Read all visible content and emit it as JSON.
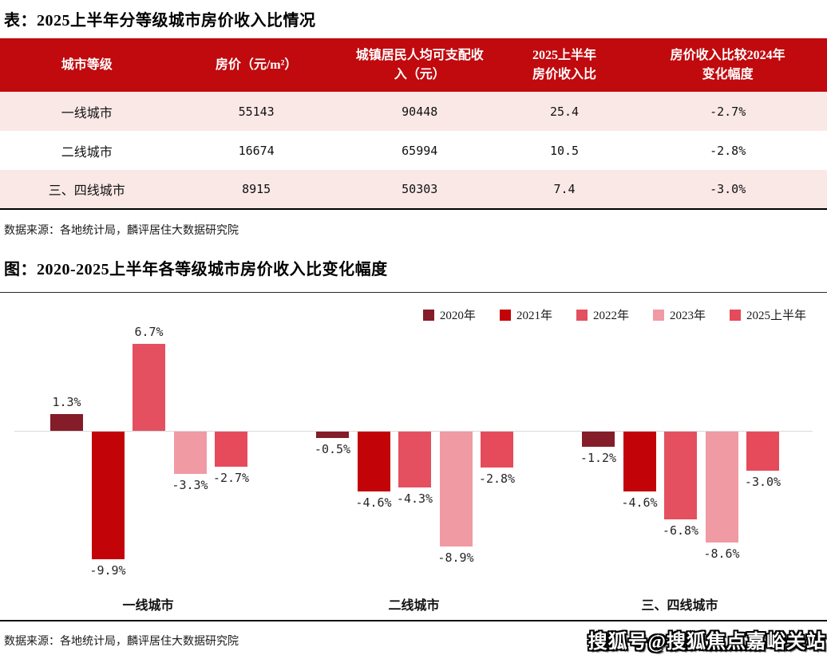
{
  "table_section": {
    "title": "表：2025上半年分等级城市房价收入比情况",
    "columns": [
      "城市等级",
      "房价（元/m²）",
      "城镇居民人均可支配收\n入（元）",
      "2025上半年\n房价收入比",
      "房价收入比较2024年\n变化幅度"
    ],
    "rows": [
      {
        "tier": "一线城市",
        "price": "55143",
        "income": "90448",
        "ratio": "25.4",
        "change": "-2.7%"
      },
      {
        "tier": "二线城市",
        "price": "16674",
        "income": "65994",
        "ratio": "10.5",
        "change": "-2.8%"
      },
      {
        "tier": "三、四线城市",
        "price": "8915",
        "income": "50303",
        "ratio": "7.4",
        "change": "-3.0%"
      }
    ],
    "source": "数据来源：各地统计局，麟评居住大数据研究院"
  },
  "chart_section": {
    "title": "图：2020-2025上半年各等级城市房价收入比变化幅度",
    "source": "数据来源：各地统计局，麟评居住大数据研究院"
  },
  "chart_data": {
    "type": "bar",
    "title": "图：2020-2025上半年各等级城市房价收入比变化幅度",
    "categories": [
      "一线城市",
      "二线城市",
      "三、四线城市"
    ],
    "series": [
      {
        "name": "2020年",
        "color": "#841C29",
        "values": [
          1.3,
          -0.5,
          -1.2
        ],
        "labels": [
          "1.3%",
          "-0.5%",
          "-1.2%"
        ]
      },
      {
        "name": "2021年",
        "color": "#C20408",
        "values": [
          -9.9,
          -4.6,
          -4.6
        ],
        "labels": [
          "-9.9%",
          "-4.6%",
          "-4.6%"
        ]
      },
      {
        "name": "2022年",
        "color": "#E4505F",
        "values": [
          6.7,
          -4.3,
          -6.8
        ],
        "labels": [
          "6.7%",
          "-4.3%",
          "-6.8%"
        ]
      },
      {
        "name": "2023年",
        "color": "#F09AA4",
        "values": [
          -3.3,
          -8.9,
          -8.6
        ],
        "labels": [
          "-3.3%",
          "-8.9%",
          "-8.6%"
        ]
      },
      {
        "name": "2025上半年",
        "color": "#E54B5B",
        "values": [
          -2.7,
          -2.8,
          -3.0
        ],
        "labels": [
          "-2.7%",
          "-2.8%",
          "-3.0%"
        ]
      }
    ],
    "unit": "%",
    "ylim": [
      -10.5,
      7.5
    ],
    "grid": false,
    "legend_position": "top-right",
    "value_labels": true,
    "zero_line_color": "#D9D9D9"
  },
  "watermark": "搜狐号@搜狐焦点嘉峪关站",
  "colors": {
    "table_header_bg": "#C00A0E",
    "table_row_alt_bg": "#FAE8E7"
  }
}
